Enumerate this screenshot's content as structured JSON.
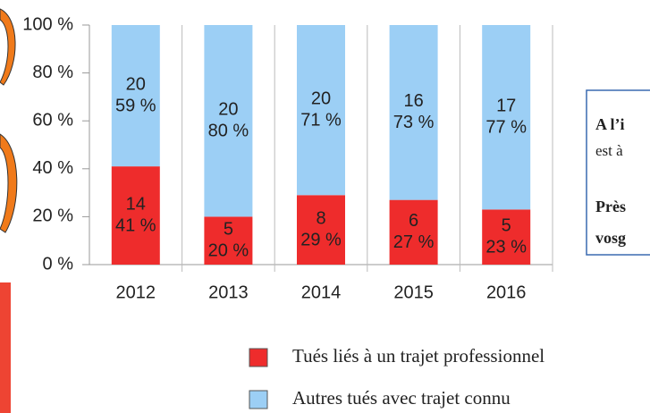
{
  "chart_data": {
    "type": "stacked_bar",
    "categories": [
      "2012",
      "2013",
      "2014",
      "2015",
      "2016"
    ],
    "series": [
      {
        "name": "Tués liés à un trajet professionnel",
        "color": "#ee2c2c",
        "values": [
          41,
          20,
          29,
          27,
          23
        ],
        "value_labels": [
          "41 %",
          "20 %",
          "29 %",
          "27 %",
          "23 %"
        ],
        "counts": [
          14,
          5,
          8,
          6,
          5
        ]
      },
      {
        "name": "Autres tués avec trajet connu",
        "color": "#9ccff5",
        "values": [
          59,
          80,
          71,
          73,
          77
        ],
        "value_labels": [
          "59 %",
          "80 %",
          "71 %",
          "73 %",
          "77 %"
        ],
        "counts": [
          20,
          20,
          20,
          16,
          17
        ]
      }
    ],
    "ylim": [
      0,
      100
    ],
    "yticks": [
      {
        "value": 0,
        "label": "0 %"
      },
      {
        "value": 20,
        "label": "20 %"
      },
      {
        "value": 40,
        "label": "40 %"
      },
      {
        "value": 60,
        "label": "60 %"
      },
      {
        "value": 80,
        "label": "80 %"
      },
      {
        "value": 100,
        "label": "100 %"
      }
    ]
  },
  "side_box": {
    "lines": [
      "A l’i",
      "est à",
      "Près",
      "vosg"
    ]
  }
}
